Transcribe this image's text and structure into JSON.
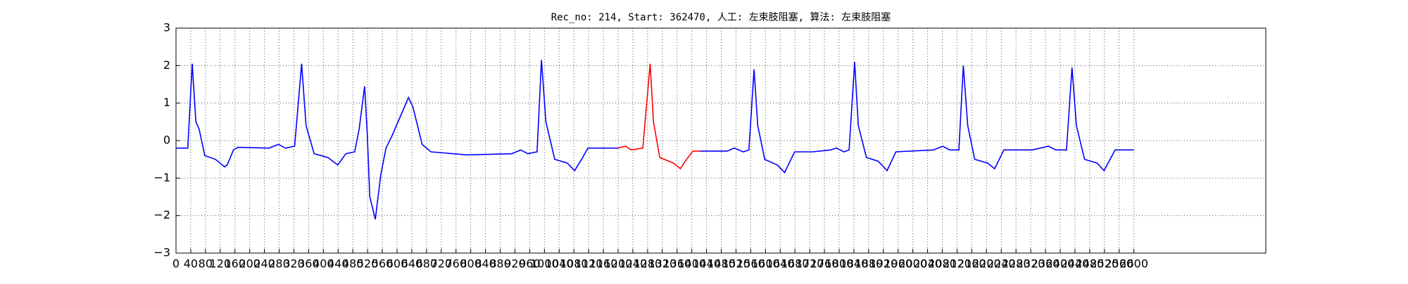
{
  "chart_data": {
    "type": "line",
    "title": "Rec_no: 214, Start: 362470, 人工: 左束肢阻塞, 算法: 左束肢阻塞",
    "x": [
      0,
      32,
      44,
      54,
      63,
      78,
      107,
      132,
      139,
      156,
      168,
      253,
      278,
      297,
      322,
      341,
      353,
      375,
      412,
      439,
      461,
      485,
      497,
      512,
      519,
      526,
      541,
      556,
      570,
      585,
      607,
      631,
      643,
      668,
      692,
      789,
      911,
      936,
      955,
      980,
      992,
      1004,
      1028,
      1062,
      1082,
      1101,
      1118,
      1179,
      1199,
      1221,
      1235,
      1267,
      1287,
      1296,
      1313,
      1350,
      1369,
      1386,
      1403,
      1423,
      1496,
      1515,
      1540,
      1555,
      1569,
      1579,
      1598,
      1632,
      1652,
      1679,
      1728,
      1776,
      1793,
      1813,
      1827,
      1842,
      1852,
      1874,
      1906,
      1930,
      1954,
      2056,
      2081,
      2100,
      2125,
      2137,
      2149,
      2168,
      2203,
      2222,
      2247,
      2324,
      2368,
      2388,
      2417,
      2432,
      2444,
      2466,
      2500,
      2519,
      2549,
      2600
    ],
    "series": [
      {
        "color": "#0000ff",
        "values": [
          -0.2,
          -0.2,
          2.05,
          0.5,
          0.3,
          -0.4,
          -0.5,
          -0.7,
          -0.65,
          -0.25,
          -0.18,
          -0.2,
          -0.1,
          -0.2,
          -0.15,
          2.05,
          0.4,
          -0.35,
          -0.45,
          -0.65,
          -0.35,
          -0.3,
          0.3,
          1.45,
          0.2,
          -1.5,
          -2.1,
          -0.9,
          -0.2,
          0.1,
          0.6,
          1.15,
          0.9,
          -0.1,
          -0.3,
          -0.38,
          -0.35,
          -0.25,
          -0.35,
          -0.3,
          2.15,
          0.5,
          -0.5,
          -0.6,
          -0.8,
          -0.5,
          -0.2,
          -0.2,
          -0.2,
          null,
          null,
          null,
          null,
          null,
          null,
          null,
          null,
          null,
          null,
          -0.28,
          -0.28,
          -0.2,
          -0.3,
          -0.25,
          1.9,
          0.4,
          -0.5,
          -0.65,
          -0.85,
          -0.3,
          -0.3,
          -0.25,
          -0.2,
          -0.3,
          -0.25,
          2.1,
          0.4,
          -0.45,
          -0.55,
          -0.8,
          -0.3,
          -0.25,
          -0.15,
          -0.25,
          -0.25,
          2.0,
          0.4,
          -0.5,
          -0.6,
          -0.75,
          -0.25,
          -0.25,
          -0.15,
          -0.25,
          -0.25,
          1.95,
          0.4,
          -0.5,
          -0.6,
          -0.8,
          -0.25,
          -0.25
        ]
      },
      {
        "color": "#ff0000",
        "values": [
          null,
          null,
          null,
          null,
          null,
          null,
          null,
          null,
          null,
          null,
          null,
          null,
          null,
          null,
          null,
          null,
          null,
          null,
          null,
          null,
          null,
          null,
          null,
          null,
          null,
          null,
          null,
          null,
          null,
          null,
          null,
          null,
          null,
          null,
          null,
          null,
          null,
          null,
          null,
          null,
          null,
          null,
          null,
          null,
          null,
          null,
          null,
          null,
          -0.2,
          -0.15,
          -0.25,
          -0.2,
          2.05,
          0.5,
          -0.45,
          -0.6,
          -0.75,
          -0.5,
          -0.28,
          -0.28,
          null,
          null,
          null,
          null,
          null,
          null,
          null,
          null,
          null,
          null,
          null,
          null,
          null,
          null,
          null,
          null,
          null,
          null,
          null,
          null,
          null,
          null,
          null,
          null,
          null,
          null,
          null,
          null,
          null,
          null,
          null,
          null,
          null,
          null,
          null,
          null,
          null,
          null,
          null,
          null,
          null,
          null
        ]
      }
    ],
    "xlim": [
      0,
      2958
    ],
    "xticks": [
      0,
      40,
      80,
      120,
      160,
      200,
      240,
      280,
      320,
      360,
      400,
      440,
      480,
      520,
      560,
      600,
      640,
      680,
      720,
      760,
      800,
      840,
      880,
      920,
      960,
      1000,
      1040,
      1080,
      1120,
      1160,
      1200,
      1240,
      1280,
      1320,
      1360,
      1400,
      1440,
      1480,
      1520,
      1560,
      1600,
      1640,
      1680,
      1720,
      1760,
      1800,
      1840,
      1880,
      1920,
      1960,
      2000,
      2040,
      2080,
      2120,
      2160,
      2200,
      2240,
      2280,
      2320,
      2360,
      2400,
      2440,
      2480,
      2520,
      2560,
      2600
    ],
    "ylim": [
      -3,
      3
    ],
    "yticks": [
      {
        "value": -3,
        "label": "−3"
      },
      {
        "value": -2,
        "label": "−2"
      },
      {
        "value": -1,
        "label": "−1"
      },
      0,
      1,
      2,
      3
    ],
    "grid": true
  }
}
